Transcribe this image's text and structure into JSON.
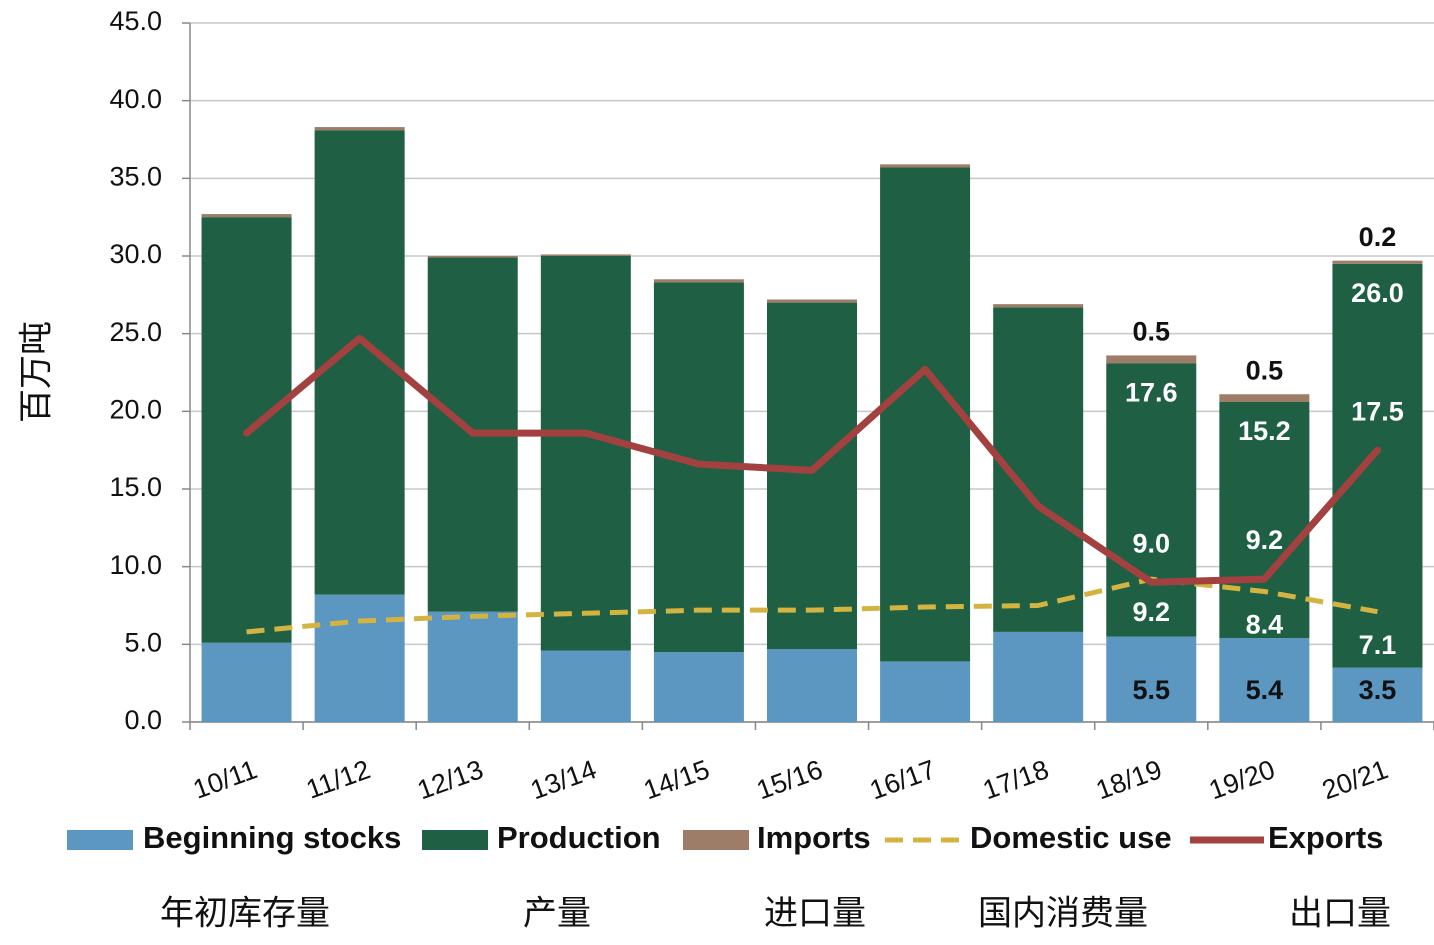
{
  "chart_data": {
    "type": "stacked_bar_line",
    "y_label": "百万吨",
    "categories": [
      "10/11",
      "11/12",
      "12/13",
      "13/14",
      "14/15",
      "15/16",
      "16/17",
      "17/18",
      "18/19",
      "19/20",
      "20/21"
    ],
    "ylim": [
      0,
      45
    ],
    "yticks": [
      {
        "value": 0,
        "label": "0.0"
      },
      {
        "value": 5,
        "label": "5.0"
      },
      {
        "value": 10,
        "label": "10.0"
      },
      {
        "value": 15,
        "label": "15.0"
      },
      {
        "value": 20,
        "label": "20.0"
      },
      {
        "value": 25,
        "label": "25.0"
      },
      {
        "value": 30,
        "label": "30.0"
      },
      {
        "value": 35,
        "label": "35.0"
      },
      {
        "value": 40,
        "label": "40.0"
      },
      {
        "value": 45,
        "label": "45.0"
      }
    ],
    "grid": true,
    "series": [
      {
        "name": "Beginning stocks",
        "name_cn": "年初库存量",
        "kind": "bar",
        "color": "#5b97c0",
        "values": [
          5.1,
          8.2,
          7.1,
          4.6,
          4.5,
          4.7,
          3.9,
          5.8,
          5.5,
          5.4,
          3.5
        ],
        "value_labels": [
          null,
          null,
          null,
          null,
          null,
          null,
          null,
          null,
          "5.5",
          "5.4",
          "3.5"
        ]
      },
      {
        "name": "Production",
        "name_cn": "产量",
        "kind": "bar",
        "color": "#1f5f43",
        "values": [
          27.4,
          29.9,
          22.8,
          25.4,
          23.8,
          22.3,
          31.8,
          20.9,
          17.6,
          15.2,
          26.0
        ],
        "value_labels": [
          null,
          null,
          null,
          null,
          null,
          null,
          null,
          null,
          "17.6",
          "15.2",
          "26.0"
        ]
      },
      {
        "name": "Imports",
        "name_cn": "进口量",
        "kind": "bar",
        "color": "#9d7d67",
        "values": [
          0.2,
          0.2,
          0.1,
          0.1,
          0.2,
          0.2,
          0.2,
          0.2,
          0.5,
          0.5,
          0.2
        ],
        "value_labels": [
          null,
          null,
          null,
          null,
          null,
          null,
          null,
          null,
          "0.5",
          "0.5",
          "0.2"
        ]
      },
      {
        "name": "Domestic use",
        "name_cn": "国内消费量",
        "kind": "dashed_line",
        "color": "#d4b440",
        "values": [
          5.8,
          6.5,
          6.8,
          7.0,
          7.2,
          7.2,
          7.4,
          7.5,
          9.2,
          8.4,
          7.1
        ],
        "value_labels": [
          null,
          null,
          null,
          null,
          null,
          null,
          null,
          null,
          "9.2",
          "8.4",
          "7.1"
        ]
      },
      {
        "name": "Exports",
        "name_cn": "出口量",
        "kind": "line",
        "color": "#a2413f",
        "values": [
          18.6,
          24.7,
          18.6,
          18.6,
          16.6,
          16.2,
          22.7,
          13.9,
          9.0,
          9.2,
          17.5
        ],
        "value_labels": [
          null,
          null,
          null,
          null,
          null,
          null,
          null,
          null,
          "9.0",
          "9.2",
          "17.5"
        ]
      }
    ]
  }
}
